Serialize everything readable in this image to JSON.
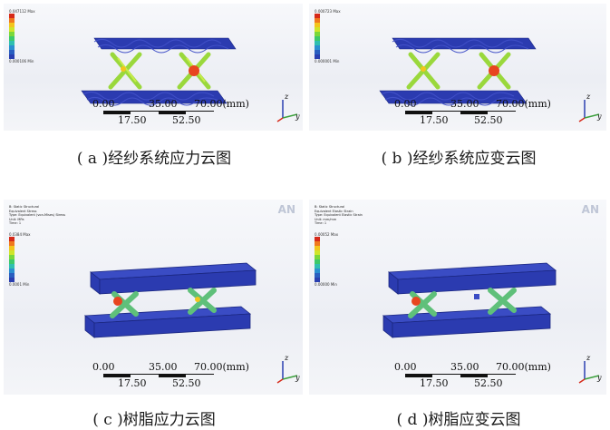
{
  "panels": [
    {
      "caption": "( a )经纱系统应力云图",
      "legend_header": "0.047112 Max",
      "legend_min": "0.000106 Min",
      "scale": {
        "l0": "0.00",
        "l2": "35.00",
        "l4": "70.00(mm)",
        "l1": "17.50",
        "l3": "52.50"
      },
      "axis": {
        "z": "z",
        "y": "y"
      }
    },
    {
      "caption": "( b )经纱系统应变云图",
      "legend_header": "0.000723 Max",
      "legend_min": "0.000001 Min",
      "scale": {
        "l0": "0.00",
        "l2": "35.00",
        "l4": "70.00(mm)",
        "l1": "17.50",
        "l3": "52.50"
      },
      "axis": {
        "z": "z",
        "y": "y"
      }
    },
    {
      "caption": "( c )树脂应力云图",
      "legend_header": "0.0384 Max",
      "legend_min": "0.0001 Min",
      "info": [
        "B: Static Structural",
        "Equivalent Stress",
        "Type: Equivalent (von-Mises) Stress",
        "Unit: MPa",
        "Time: 1"
      ],
      "brand": "AN",
      "scale": {
        "l0": "0.00",
        "l2": "35.00",
        "l4": "70.00(mm)",
        "l1": "17.50",
        "l3": "52.50"
      },
      "axis": {
        "z": "z",
        "y": "y"
      }
    },
    {
      "caption": "( d )树脂应变云图",
      "legend_header": "0.00052 Max",
      "legend_min": "0.00000 Min",
      "info": [
        "B: Static Structural",
        "Equivalent Elastic Strain",
        "Type: Equivalent Elastic Strain",
        "Unit: mm/mm",
        "Time: 1"
      ],
      "brand": "AN",
      "scale": {
        "l0": "0.00",
        "l2": "35.00",
        "l4": "70.00(mm)",
        "l1": "17.50",
        "l3": "52.50"
      },
      "axis": {
        "z": "z",
        "y": "y"
      }
    }
  ],
  "colors": {
    "legend": [
      "#d62a1a",
      "#f0781e",
      "#f3c51d",
      "#cfe52a",
      "#7ad83a",
      "#3cc96a",
      "#2fbfb0",
      "#2a8fd0",
      "#2a5fc0",
      "#2a3fb0"
    ],
    "structure": "#2b3bb0",
    "hotspot": "#e8451f",
    "fiber": "#9ad83c"
  }
}
